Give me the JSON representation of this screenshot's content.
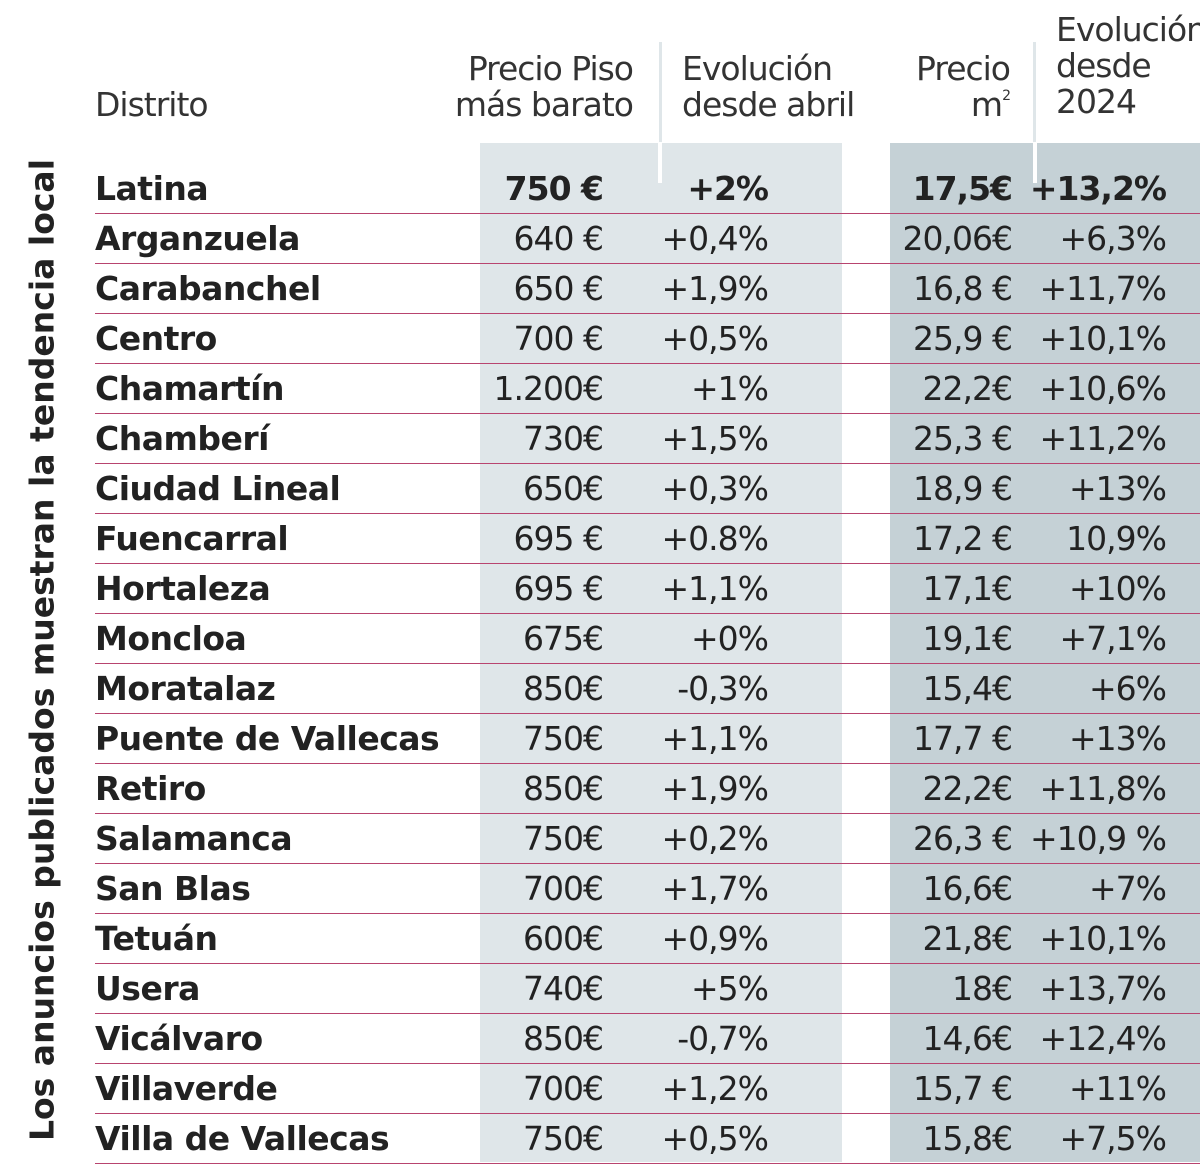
{
  "side_title": "Los anuncios publicados muestran la tendencia local",
  "headers": {
    "distrito": "Distrito",
    "precio_piso_line1": "Precio Piso",
    "precio_piso_line2": "más barato",
    "evolucion_abril_line1": "Evolución",
    "evolucion_abril_line2": "desde abril",
    "precio_m2_line1": "Precio",
    "precio_m2_line2": "m",
    "precio_m2_sup": "2",
    "evolucion_2024_line1": "Evolución",
    "evolucion_2024_line2": "desde",
    "evolucion_2024_line3": "2024"
  },
  "colors": {
    "band_light": "#dfe6e9",
    "band_dark": "#c5d1d6",
    "row_rule": "#b8446f",
    "text": "#222222"
  },
  "rows": [
    {
      "distrito": "Latina",
      "precio": "750 €",
      "evo_abril": "+2%",
      "precio_m2": "17,5€",
      "evo_2024": "+13,2%"
    },
    {
      "distrito": "Arganzuela",
      "precio": "640 €",
      "evo_abril": "+0,4%",
      "precio_m2": "20,06€",
      "evo_2024": "+6,3%"
    },
    {
      "distrito": "Carabanchel",
      "precio": "650 €",
      "evo_abril": "+1,9%",
      "precio_m2": "16,8 €",
      "evo_2024": "+11,7%"
    },
    {
      "distrito": "Centro",
      "precio": "700 €",
      "evo_abril": "+0,5%",
      "precio_m2": "25,9 €",
      "evo_2024": "+10,1%"
    },
    {
      "distrito": "Chamartín",
      "precio": "1.200€",
      "evo_abril": "+1%",
      "precio_m2": "22,2€",
      "evo_2024": "+10,6%"
    },
    {
      "distrito": "Chamberí",
      "precio": "730€",
      "evo_abril": "+1,5%",
      "precio_m2": "25,3 €",
      "evo_2024": "+11,2%"
    },
    {
      "distrito": "Ciudad Lineal",
      "precio": "650€",
      "evo_abril": "+0,3%",
      "precio_m2": "18,9 €",
      "evo_2024": "+13%"
    },
    {
      "distrito": "Fuencarral",
      "precio": "695 €",
      "evo_abril": "+0.8%",
      "precio_m2": "17,2 €",
      "evo_2024": "10,9%"
    },
    {
      "distrito": "Hortaleza",
      "precio": "695 €",
      "evo_abril": "+1,1%",
      "precio_m2": "17,1€",
      "evo_2024": "+10%"
    },
    {
      "distrito": "Moncloa",
      "precio": "675€",
      "evo_abril": "+0%",
      "precio_m2": "19,1€",
      "evo_2024": "+7,1%"
    },
    {
      "distrito": "Moratalaz",
      "precio": "850€",
      "evo_abril": "-0,3%",
      "precio_m2": "15,4€",
      "evo_2024": "+6%"
    },
    {
      "distrito": "Puente de Vallecas",
      "precio": "750€",
      "evo_abril": "+1,1%",
      "precio_m2": "17,7 €",
      "evo_2024": "+13%"
    },
    {
      "distrito": "Retiro",
      "precio": "850€",
      "evo_abril": "+1,9%",
      "precio_m2": "22,2€",
      "evo_2024": "+11,8%"
    },
    {
      "distrito": "Salamanca",
      "precio": "750€",
      "evo_abril": "+0,2%",
      "precio_m2": "26,3 €",
      "evo_2024": "+10,9 %"
    },
    {
      "distrito": "San Blas",
      "precio": "700€",
      "evo_abril": "+1,7%",
      "precio_m2": "16,6€",
      "evo_2024": "+7%"
    },
    {
      "distrito": "Tetuán",
      "precio": "600€",
      "evo_abril": "+0,9%",
      "precio_m2": "21,8€",
      "evo_2024": "+10,1%"
    },
    {
      "distrito": "Usera",
      "precio": "740€",
      "evo_abril": "+5%",
      "precio_m2": "18€",
      "evo_2024": "+13,7%"
    },
    {
      "distrito": "Vicálvaro",
      "precio": "850€",
      "evo_abril": "-0,7%",
      "precio_m2": "14,6€",
      "evo_2024": "+12,4%"
    },
    {
      "distrito": "Villaverde",
      "precio": "700€",
      "evo_abril": "+1,2%",
      "precio_m2": "15,7 €",
      "evo_2024": "+11%"
    },
    {
      "distrito": "Villa de Vallecas",
      "precio": "750€",
      "evo_abril": "+0,5%",
      "precio_m2": "15,8€",
      "evo_2024": "+7,5%"
    }
  ]
}
